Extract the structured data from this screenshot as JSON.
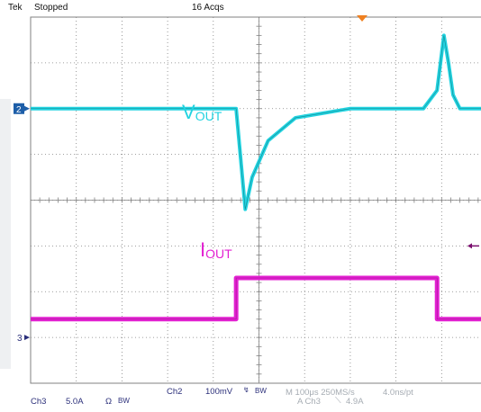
{
  "header": {
    "brand": "Tek",
    "status": "Stopped",
    "acqs": "16 Acqs"
  },
  "labels": {
    "vout_main": "V",
    "vout_sub": "OUT",
    "iout_main": "I",
    "iout_sub": "OUT"
  },
  "markers": {
    "ch2": "2",
    "ch3": "3"
  },
  "footer": {
    "ch3_label": "Ch3",
    "ch3_scale": "5.0A",
    "ch3_coupling": "Ω",
    "ch3_bw": "BW",
    "ch2_label": "Ch2",
    "ch2_scale": "100mV",
    "ch2_bw": "BW",
    "timebase": "M 100μs 250MS/s",
    "resolution": "4.0ns/pt",
    "trigger_source": "A  Ch3",
    "trigger_level": "4.9A"
  },
  "colors": {
    "vout": "#22d3e0",
    "iout": "#e321d2",
    "grid": "#808080",
    "trigger_marker": "#f08020"
  },
  "chart_data": {
    "type": "line",
    "title": "",
    "xlabel": "",
    "ylabel": "",
    "grid": true,
    "divisions": {
      "x": 10,
      "y": 8
    },
    "xlim": [
      0,
      10
    ],
    "ylim": [
      -4,
      4
    ],
    "x_units": "divisions",
    "y_units": "divisions",
    "series": [
      {
        "name": "VOUT",
        "channel": "Ch2",
        "x": [
          0,
          4.5,
          4.5,
          4.7,
          4.85,
          5.2,
          5.8,
          7.0,
          8.6,
          8.9,
          9.05,
          9.15,
          9.25,
          9.4,
          9.8,
          12.0
        ],
        "y": [
          2.0,
          2.0,
          2.0,
          -0.2,
          0.5,
          1.3,
          1.8,
          2.0,
          2.0,
          2.4,
          3.6,
          3.0,
          2.3,
          2.0,
          2.0,
          2.0
        ]
      },
      {
        "name": "IOUT",
        "channel": "Ch3",
        "x": [
          0,
          4.5,
          4.5,
          8.9,
          8.9,
          12.0
        ],
        "y": [
          -2.6,
          -2.6,
          -1.7,
          -1.7,
          -2.6,
          -2.6
        ]
      }
    ]
  }
}
